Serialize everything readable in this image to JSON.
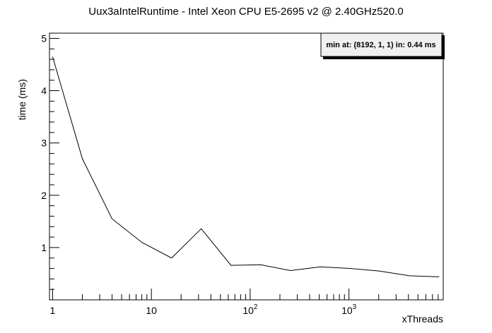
{
  "chart_data": {
    "type": "line",
    "title": "Uux3aIntelRuntime - Intel Xeon CPU E5-2695 v2 @ 2.40GHz520.0",
    "xlabel": "xThreads",
    "ylabel": "time (ms)",
    "x_scale": "log",
    "xlim": [
      0.93,
      9000
    ],
    "ylim": [
      0.0,
      5.1
    ],
    "x": [
      1,
      2,
      4,
      8,
      16,
      32,
      64,
      128,
      256,
      512,
      1024,
      2048,
      4096,
      8192
    ],
    "y": [
      4.65,
      2.7,
      1.55,
      1.1,
      0.8,
      1.36,
      0.66,
      0.67,
      0.56,
      0.63,
      0.6,
      0.55,
      0.46,
      0.44
    ],
    "y_ticks": [
      {
        "value": 1,
        "label": "1"
      },
      {
        "value": 2,
        "label": "2"
      },
      {
        "value": 3,
        "label": "3"
      },
      {
        "value": 4,
        "label": "4"
      },
      {
        "value": 5,
        "label": "5"
      }
    ],
    "x_ticks": [
      {
        "value": 1,
        "base": "1",
        "exp": ""
      },
      {
        "value": 10,
        "base": "10",
        "exp": ""
      },
      {
        "value": 100,
        "base": "10",
        "exp": "2"
      },
      {
        "value": 1000,
        "base": "10",
        "exp": "3"
      }
    ],
    "annotation": "min at: (8192, 1, 1) in: 0.44 ms",
    "grid": false,
    "line_color": "#000000"
  }
}
